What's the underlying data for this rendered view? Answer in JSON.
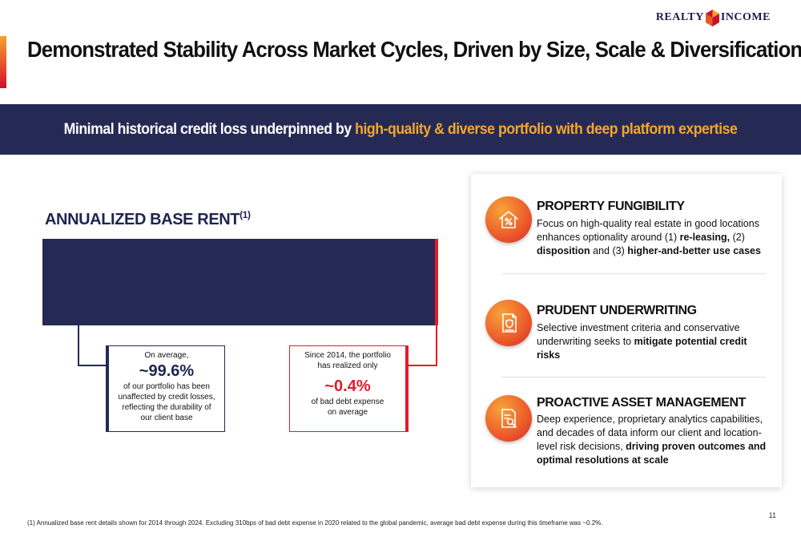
{
  "logo": {
    "left": "REALTY",
    "right": "INCOME"
  },
  "title": "Demonstrated Stability Across Market Cycles, Driven by Size, Scale & Diversification",
  "banner": {
    "lead": "Minimal historical credit loss underpinned by ",
    "highlight": "high-quality & diverse portfolio with deep platform expertise"
  },
  "abr": {
    "title": "ANNUALIZED BASE RENT",
    "sup": "(1)",
    "left_callout": {
      "line1": "On average,",
      "big": "~99.6%",
      "line2": "of our portfolio has been unaffected by credit losses, reflecting the durability of our client base"
    },
    "right_callout": {
      "line1": "Since 2014, the portfolio has realized only",
      "big": "~0.4%",
      "line2": "of bad debt expense on average"
    }
  },
  "features": [
    {
      "icon": "house-percent-icon",
      "title": "PROPERTY FUNGIBILITY",
      "t1": "Focus on high-quality real estate in good locations enhances optionality around (1) ",
      "b1": "re-leasing,",
      "t2": " (2) ",
      "b2": "disposition",
      "t3": " and (3) ",
      "b3": "higher-and-better use cases"
    },
    {
      "icon": "document-shield-icon",
      "title": "PRUDENT UNDERWRITING",
      "t1": "Selective investment criteria and conservative underwriting seeks to ",
      "b1": "mitigate potential credit risks"
    },
    {
      "icon": "analytics-document-icon",
      "title": "PROACTIVE ASSET MANAGEMENT",
      "t1": "Deep experience, proprietary analytics capabilities, and decades of data inform our client and location-level risk decisions, ",
      "b1": "driving proven outcomes and optimal resolutions at scale"
    }
  ],
  "page_number": "11",
  "footnote": "(1) Annualized base rent details shown for 2014 through 2024.  Excluding 310bps of bad debt expense in 2020 related to the global pandemic, average bad debt expense during this timeframe was ~0.2%.",
  "colors": {
    "navy": "#252a55",
    "orange": "#f5a52c",
    "red": "#e31b2b"
  }
}
